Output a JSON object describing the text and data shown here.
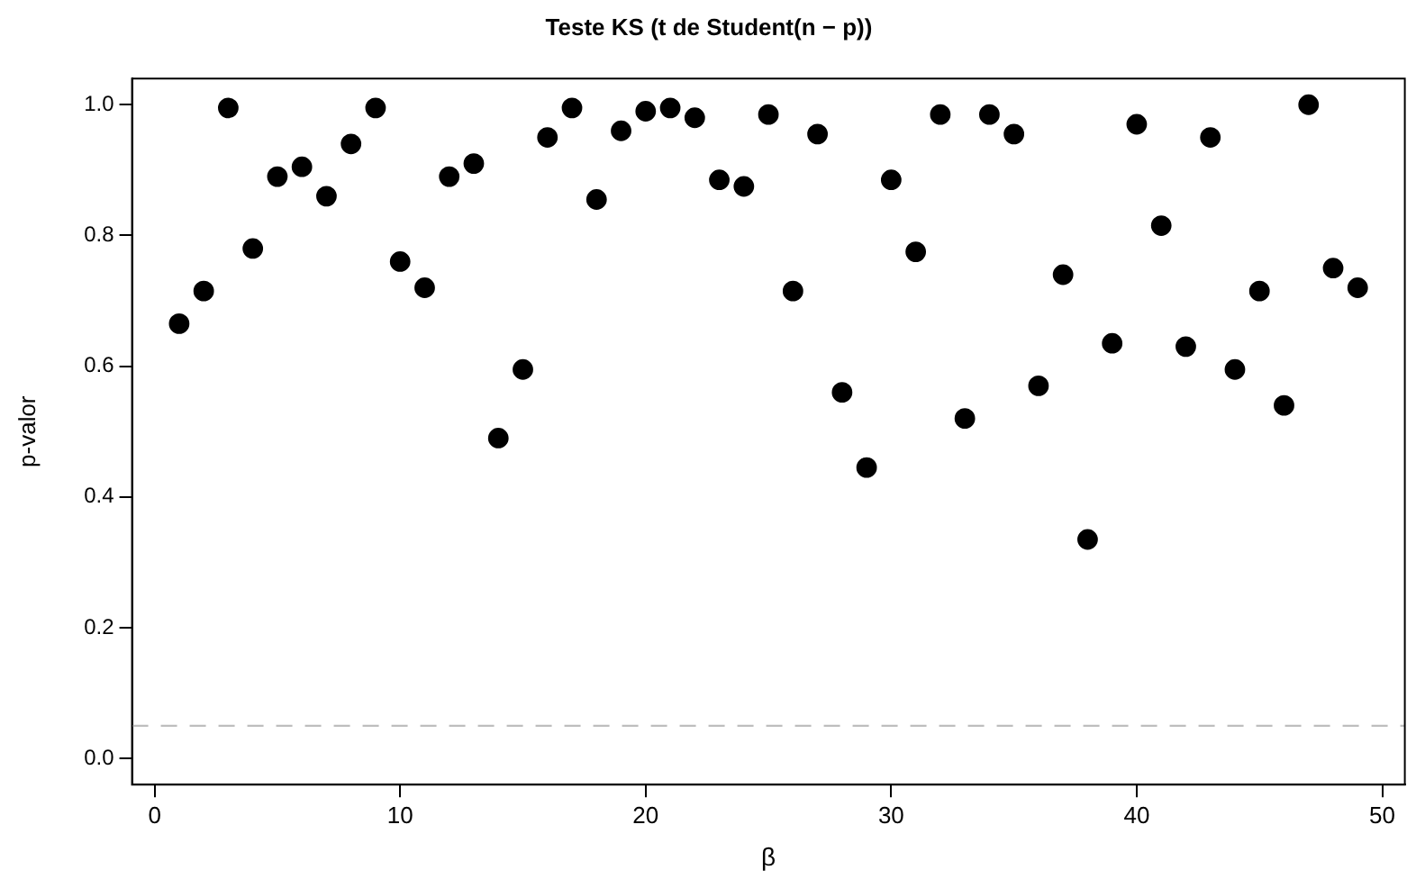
{
  "chart_data": {
    "type": "scatter",
    "title": "Teste KS (t de Student(n − p))",
    "xlabel": "β",
    "ylabel": "p-valor",
    "x": [
      1,
      2,
      3,
      4,
      5,
      6,
      7,
      8,
      9,
      10,
      11,
      12,
      13,
      14,
      15,
      16,
      17,
      18,
      19,
      20,
      21,
      22,
      23,
      24,
      25,
      26,
      27,
      28,
      29,
      30,
      31,
      32,
      33,
      34,
      35,
      36,
      37,
      38,
      39,
      40,
      41,
      42,
      43,
      44,
      45,
      46,
      47,
      48,
      49
    ],
    "series": [
      {
        "color": "#000000",
        "values": [
          0.665,
          0.715,
          0.995,
          0.78,
          0.89,
          0.905,
          0.86,
          0.94,
          0.995,
          0.76,
          0.72,
          0.89,
          0.91,
          0.49,
          0.595,
          0.95,
          0.995,
          0.855,
          0.96,
          0.99,
          0.995,
          0.98,
          0.885,
          0.875,
          0.985,
          0.715,
          0.955,
          0.56,
          0.445,
          0.885,
          0.775,
          0.985,
          0.52,
          0.985,
          0.955,
          0.57,
          0.74,
          0.335,
          0.635,
          0.97,
          0.815,
          0.63,
          0.95,
          0.595,
          0.715,
          0.54,
          1.0,
          0.75,
          0.72
        ]
      }
    ],
    "xlim": [
      -0.92,
      50.92
    ],
    "ylim": [
      -0.04,
      1.04
    ],
    "xticks": [
      0,
      10,
      20,
      30,
      40,
      50
    ],
    "yticks": [
      {
        "value": 0,
        "label": "0.0"
      },
      0.2,
      0.4,
      0.6,
      0.8,
      {
        "value": 1,
        "label": "1.0"
      }
    ],
    "ref_lines": [
      {
        "axis": "y",
        "value": 0.05,
        "color": "#bebebe",
        "line_style": "dashed"
      }
    ],
    "grid": false,
    "legend": false,
    "marker": "circle"
  }
}
